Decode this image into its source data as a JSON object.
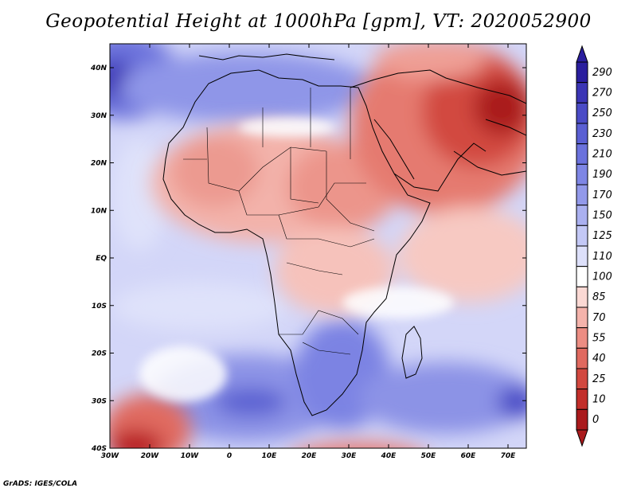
{
  "title": "Geopotential Height at 1000hPa [gpm], VT: 2020052900",
  "credit": "GrADS: IGES/COLA",
  "map": {
    "lon_labels": [
      "30W",
      "20W",
      "10W",
      "0",
      "10E",
      "20E",
      "30E",
      "40E",
      "50E",
      "60E",
      "70E"
    ],
    "lat_labels": [
      "40N",
      "30N",
      "20N",
      "10N",
      "EQ",
      "10S",
      "20S",
      "30S",
      "40S"
    ],
    "lon_range": [
      -30,
      75
    ],
    "lat_range": [
      -40,
      45
    ]
  },
  "colorbar": {
    "levels": [
      "290",
      "270",
      "250",
      "230",
      "210",
      "190",
      "170",
      "150",
      "125",
      "110",
      "100",
      "85",
      "70",
      "55",
      "40",
      "25",
      "10",
      "0"
    ],
    "colors": [
      "#2a1e9e",
      "#3b35b5",
      "#4a4bc6",
      "#5a5fd3",
      "#6b72dd",
      "#7e86e5",
      "#9299ea",
      "#aab0f0",
      "#c3c8f6",
      "#dde0fa",
      "#ffffff",
      "#fbd9d4",
      "#f4b3ab",
      "#ec8d83",
      "#e0695f",
      "#d2483f",
      "#c22e2a",
      "#aa1a1c"
    ]
  },
  "legend_colors": {
    "low": "#c22e2a",
    "high": "#3b35b5",
    "neutral": "#ffffff"
  }
}
